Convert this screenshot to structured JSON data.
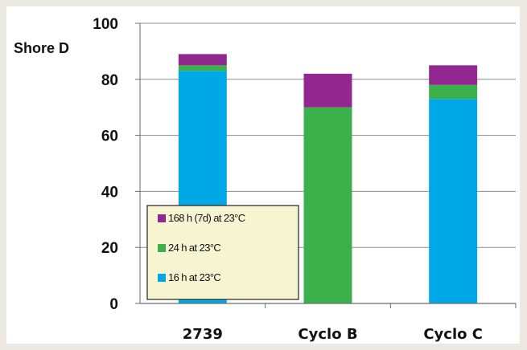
{
  "chart_data": {
    "type": "bar",
    "stacked": true,
    "title": "",
    "xlabel": "",
    "ylabel": "Shore D",
    "ylim": [
      0,
      100
    ],
    "yticks": [
      0,
      20,
      40,
      60,
      80,
      100
    ],
    "grid": true,
    "legend_position": "bottom-left",
    "categories": [
      "2739",
      "Cyclo B",
      "Cyclo C"
    ],
    "series": [
      {
        "name": "16 h at 23°C",
        "color": "#00a8e8",
        "values": [
          83,
          0,
          73
        ]
      },
      {
        "name": "24 h at 23°C",
        "color": "#3cb04a",
        "values": [
          2,
          70,
          5
        ]
      },
      {
        "name": "168 h (7d) at 23°C",
        "color": "#92278f",
        "values": [
          4,
          12,
          7
        ]
      }
    ],
    "legend_order": [
      2,
      1,
      0
    ]
  }
}
